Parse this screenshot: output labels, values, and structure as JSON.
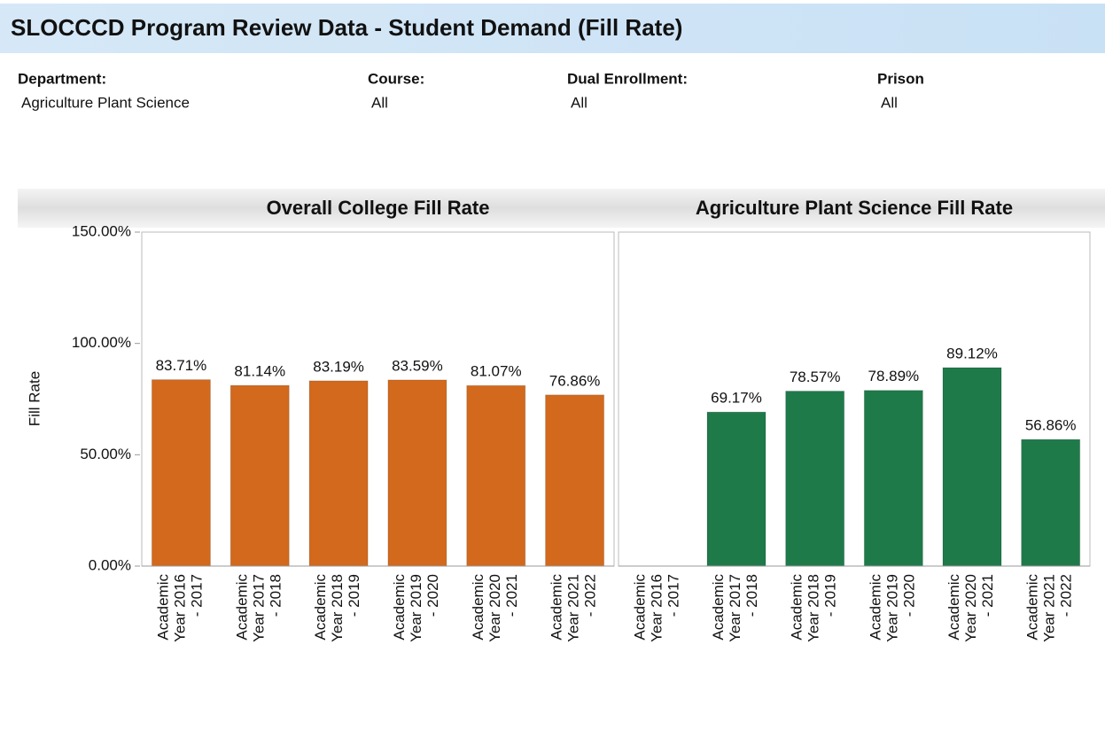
{
  "header": {
    "title": "SLOCCCD Program Review Data - Student Demand (Fill Rate)"
  },
  "filters": [
    {
      "label": "Department:",
      "value": "Agriculture Plant Science"
    },
    {
      "label": "Course:",
      "value": "All"
    },
    {
      "label": "Dual Enrollment:",
      "value": "All"
    },
    {
      "label": "Prison",
      "value": "All"
    }
  ],
  "chart_data": [
    {
      "type": "bar",
      "title": "Overall College Fill Rate",
      "ylabel": "Fill Rate",
      "color": "#d2691c",
      "categories": [
        "Academic Year 2016 - 2017",
        "Academic Year 2017 - 2018",
        "Academic Year 2018 - 2019",
        "Academic Year 2019 - 2020",
        "Academic Year 2020 - 2021",
        "Academic Year 2021 - 2022"
      ],
      "values": [
        83.71,
        81.14,
        83.19,
        83.59,
        81.07,
        76.86
      ],
      "value_labels": [
        "83.71%",
        "81.14%",
        "83.19%",
        "83.59%",
        "81.07%",
        "76.86%"
      ],
      "ylim": [
        0,
        150
      ],
      "yticks": [
        {
          "value": 0,
          "label": "0.00%"
        },
        {
          "value": 50,
          "label": "50.00%"
        },
        {
          "value": 100,
          "label": "100.00%"
        },
        {
          "value": 150,
          "label": "150.00%"
        }
      ]
    },
    {
      "type": "bar",
      "title": "Agriculture Plant Science Fill Rate",
      "color": "#1f7a4a",
      "categories": [
        "Academic Year 2016 - 2017",
        "Academic Year 2017 - 2018",
        "Academic Year 2018 - 2019",
        "Academic Year 2019 - 2020",
        "Academic Year 2020 - 2021",
        "Academic Year 2021 - 2022"
      ],
      "values": [
        null,
        69.17,
        78.57,
        78.89,
        89.12,
        56.86
      ],
      "value_labels": [
        null,
        "69.17%",
        "78.57%",
        "78.89%",
        "89.12%",
        "56.86%"
      ],
      "ylim": [
        0,
        150
      ]
    }
  ]
}
